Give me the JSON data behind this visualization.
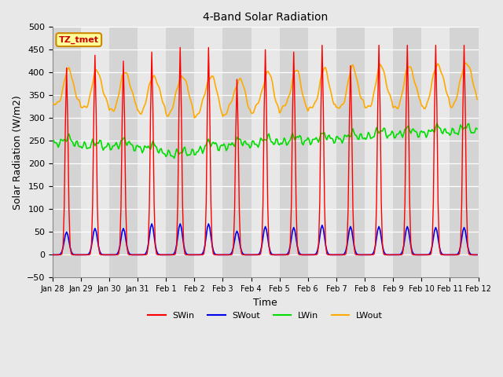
{
  "title": "4-Band Solar Radiation",
  "xlabel": "Time",
  "ylabel": "Solar Radiation (W/m2)",
  "ylim": [
    -50,
    500
  ],
  "yticks": [
    -50,
    0,
    50,
    100,
    150,
    200,
    250,
    300,
    350,
    400,
    450,
    500
  ],
  "xtick_labels": [
    "Jan 28",
    "Jan 29",
    "Jan 30",
    "Jan 31",
    "Feb 1",
    "Feb 2",
    "Feb 3",
    "Feb 4",
    "Feb 5",
    "Feb 6",
    "Feb 7",
    "Feb 8",
    "Feb 9",
    "Feb 10",
    "Feb 11",
    "Feb 12"
  ],
  "n_days": 15,
  "colors": {
    "SWin": "#ff0000",
    "SWout": "#0000ee",
    "LWin": "#00dd00",
    "LWout": "#ffaa00",
    "fig_bg": "#e8e8e8",
    "plot_bg_light": "#d8d8d8",
    "plot_bg_dark": "#c8c8c8",
    "grid": "#ffffff",
    "annotation_bg": "#ffff99",
    "annotation_border": "#cc8800",
    "annotation_text": "#cc0000"
  },
  "annotation": "TZ_tmet",
  "legend_entries": [
    "SWin",
    "SWout",
    "LWin",
    "LWout"
  ]
}
